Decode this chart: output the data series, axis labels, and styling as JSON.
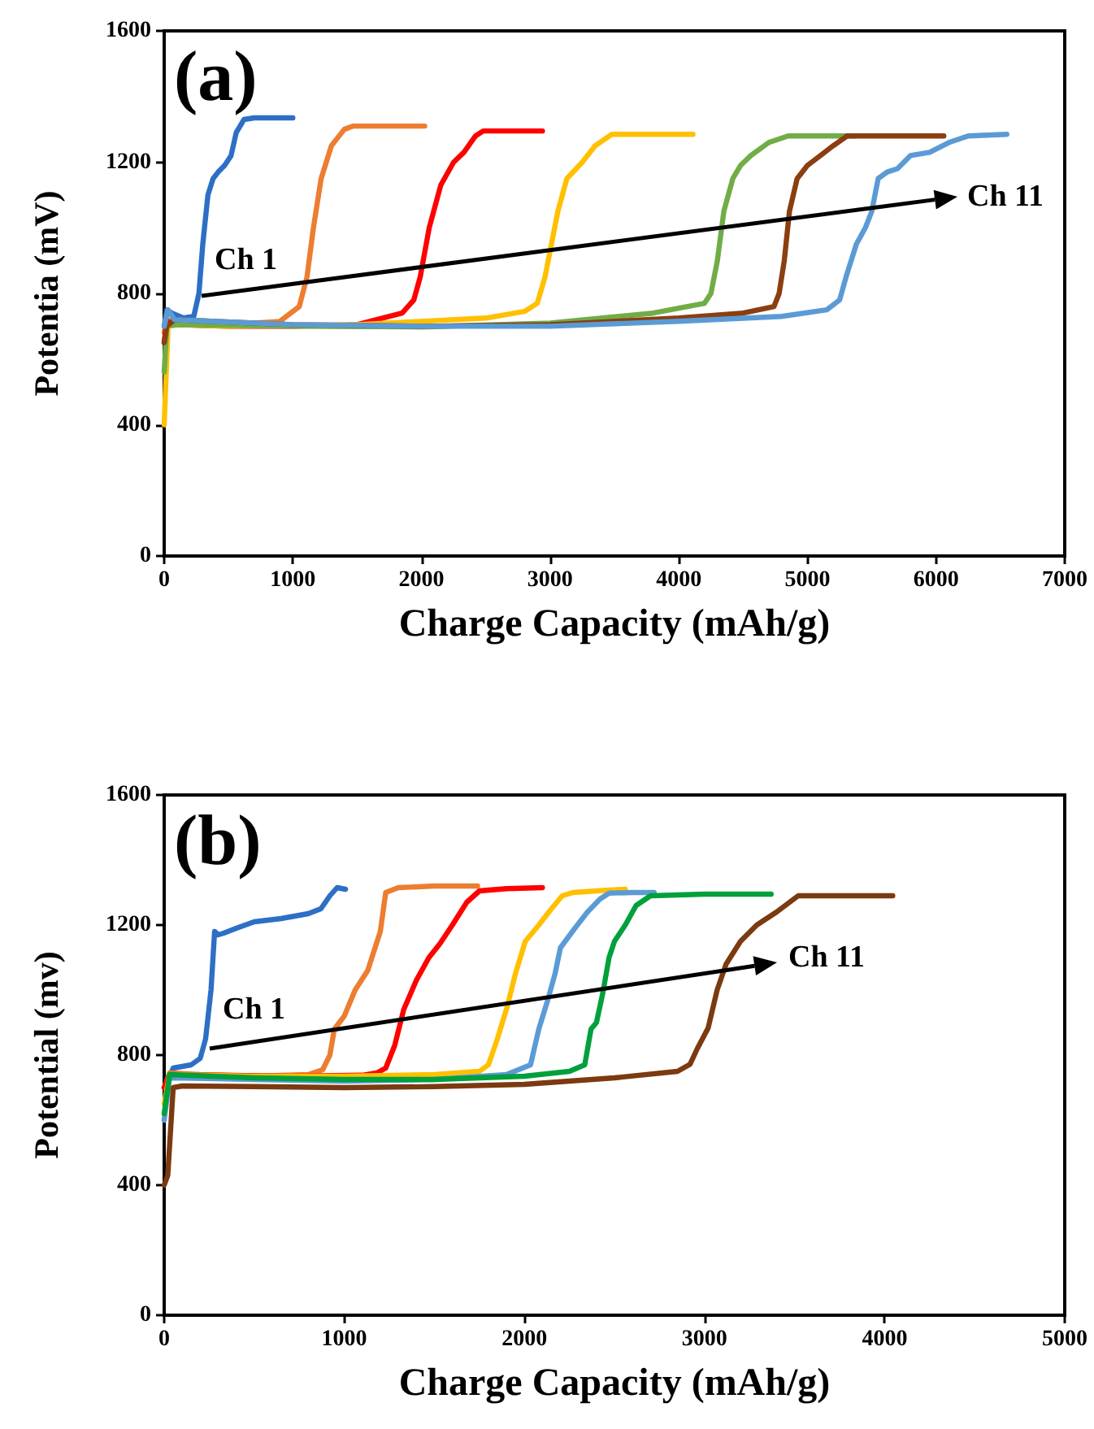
{
  "chart_data": [
    {
      "type": "line",
      "xlabel": "Charge Capacity (mAh/g)",
      "ylabel": "Potentia (mV)",
      "xlim": [
        0,
        7000
      ],
      "xticks": [
        0,
        1000,
        2000,
        3000,
        4000,
        5000,
        6000,
        7000
      ],
      "ylim": [
        0,
        1600
      ],
      "yticks": [
        0,
        400,
        800,
        1200,
        1600
      ],
      "grid": false,
      "marker": "none",
      "line_style": "solid",
      "annotations": [
        "(a)",
        "Ch 1",
        "Ch 11"
      ],
      "series": [
        {
          "color": "#2e6fc6",
          "x": [
            0,
            20,
            60,
            150,
            230,
            270,
            300,
            340,
            380,
            420,
            470,
            520,
            560,
            620,
            700,
            1000
          ],
          "values": [
            700,
            750,
            740,
            725,
            730,
            800,
            950,
            1100,
            1150,
            1170,
            1190,
            1220,
            1290,
            1330,
            1335,
            1335
          ]
        },
        {
          "color": "#ed7d31",
          "x": [
            0,
            20,
            100,
            500,
            900,
            1050,
            1110,
            1160,
            1220,
            1300,
            1400,
            1470,
            1600,
            2025
          ],
          "values": [
            680,
            720,
            715,
            705,
            715,
            760,
            850,
            1000,
            1150,
            1250,
            1300,
            1310,
            1310,
            1310
          ]
        },
        {
          "color": "#ff0000",
          "x": [
            0,
            20,
            100,
            500,
            1000,
            1500,
            1850,
            1940,
            1990,
            2060,
            2150,
            2250,
            2330,
            2420,
            2480,
            2600,
            2940
          ],
          "values": [
            650,
            715,
            705,
            700,
            700,
            705,
            740,
            780,
            850,
            1000,
            1130,
            1200,
            1230,
            1280,
            1295,
            1295,
            1295
          ]
        },
        {
          "color": "#ffc000",
          "x": [
            0,
            10,
            30,
            100,
            500,
            1500,
            2500,
            2800,
            2900,
            2960,
            3010,
            3060,
            3130,
            3250,
            3350,
            3480,
            3700,
            4110
          ],
          "values": [
            400,
            500,
            700,
            705,
            700,
            705,
            725,
            745,
            770,
            850,
            950,
            1050,
            1150,
            1200,
            1250,
            1285,
            1285,
            1285
          ]
        },
        {
          "color": "#70ad47",
          "x": [
            0,
            20,
            100,
            1000,
            2000,
            3000,
            3800,
            4200,
            4250,
            4300,
            4350,
            4420,
            4480,
            4560,
            4700,
            4850,
            5000,
            5370
          ],
          "values": [
            560,
            700,
            705,
            700,
            698,
            710,
            740,
            770,
            800,
            900,
            1050,
            1150,
            1190,
            1220,
            1260,
            1280,
            1280,
            1280
          ]
        },
        {
          "color": "#8b3e10",
          "x": [
            0,
            20,
            80,
            1000,
            2000,
            3000,
            4000,
            4500,
            4740,
            4780,
            4820,
            4860,
            4920,
            5000,
            5100,
            5200,
            5310,
            5600,
            6060
          ],
          "values": [
            650,
            700,
            720,
            705,
            700,
            705,
            725,
            740,
            760,
            800,
            900,
            1050,
            1150,
            1190,
            1220,
            1250,
            1280,
            1280,
            1280
          ]
        },
        {
          "color": "#5b9bd5",
          "x": [
            0,
            30,
            80,
            1000,
            2000,
            3000,
            4000,
            4800,
            5150,
            5250,
            5300,
            5380,
            5450,
            5500,
            5550,
            5620,
            5700,
            5800,
            5950,
            6100,
            6250,
            6550
          ],
          "values": [
            700,
            750,
            720,
            705,
            700,
            700,
            715,
            730,
            750,
            780,
            850,
            950,
            1000,
            1050,
            1150,
            1170,
            1180,
            1220,
            1230,
            1260,
            1280,
            1285
          ]
        }
      ]
    },
    {
      "type": "line",
      "xlabel": "Charge Capacity (mAh/g)",
      "ylabel": "Potential (mv)",
      "xlim": [
        0,
        5000
      ],
      "xticks": [
        0,
        1000,
        2000,
        3000,
        4000,
        5000
      ],
      "ylim": [
        0,
        1600
      ],
      "yticks": [
        0,
        400,
        800,
        1200,
        1600
      ],
      "grid": false,
      "marker": "none",
      "line_style": "solid",
      "annotations": [
        "(b)",
        "Ch 1",
        "Ch 11"
      ],
      "series": [
        {
          "color": "#2e6fc6",
          "x": [
            0,
            50,
            150,
            200,
            230,
            260,
            280,
            300,
            330,
            400,
            500,
            650,
            800,
            870,
            920,
            960,
            1007
          ],
          "values": [
            700,
            760,
            770,
            790,
            850,
            1000,
            1180,
            1170,
            1175,
            1190,
            1210,
            1220,
            1235,
            1250,
            1290,
            1315,
            1310
          ]
        },
        {
          "color": "#ed7d31",
          "x": [
            0,
            30,
            200,
            500,
            800,
            880,
            920,
            945,
            1000,
            1060,
            1130,
            1200,
            1230,
            1300,
            1500,
            1740
          ],
          "values": [
            700,
            745,
            740,
            735,
            740,
            755,
            800,
            880,
            920,
            1000,
            1060,
            1180,
            1300,
            1315,
            1320,
            1320
          ]
        },
        {
          "color": "#ff0000",
          "x": [
            0,
            30,
            300,
            700,
            1100,
            1180,
            1230,
            1280,
            1330,
            1400,
            1470,
            1530,
            1600,
            1680,
            1750,
            1900,
            2100
          ],
          "values": [
            700,
            740,
            738,
            735,
            738,
            745,
            760,
            830,
            940,
            1030,
            1100,
            1142,
            1200,
            1270,
            1305,
            1312,
            1315
          ]
        },
        {
          "color": "#ffc000",
          "x": [
            0,
            30,
            500,
            1000,
            1500,
            1750,
            1800,
            1850,
            1905,
            1950,
            2005,
            2080,
            2150,
            2210,
            2270,
            2400,
            2560
          ],
          "values": [
            650,
            740,
            735,
            735,
            740,
            750,
            770,
            850,
            950,
            1050,
            1150,
            1200,
            1250,
            1290,
            1300,
            1305,
            1310
          ]
        },
        {
          "color": "#5b9bd5",
          "x": [
            0,
            30,
            500,
            1000,
            1500,
            1900,
            2034,
            2080,
            2130,
            2170,
            2200,
            2280,
            2350,
            2420,
            2470,
            2600,
            2720
          ],
          "values": [
            600,
            730,
            725,
            720,
            725,
            740,
            770,
            880,
            970,
            1050,
            1130,
            1190,
            1240,
            1280,
            1298,
            1300,
            1300
          ]
        },
        {
          "color": "#00a03c",
          "x": [
            0,
            30,
            500,
            1000,
            1500,
            2000,
            2250,
            2335,
            2370,
            2400,
            2435,
            2470,
            2500,
            2560,
            2620,
            2700,
            3000,
            3370
          ],
          "values": [
            620,
            740,
            730,
            725,
            725,
            735,
            750,
            770,
            880,
            900,
            990,
            1100,
            1150,
            1200,
            1260,
            1290,
            1295,
            1295
          ]
        },
        {
          "color": "#7b3a10",
          "x": [
            0,
            20,
            50,
            100,
            500,
            1000,
            1500,
            2000,
            2500,
            2850,
            2920,
            2960,
            3020,
            3070,
            3120,
            3200,
            3290,
            3400,
            3520,
            3800,
            4045
          ],
          "values": [
            400,
            430,
            700,
            705,
            703,
            700,
            703,
            710,
            730,
            750,
            772,
            820,
            883,
            1000,
            1080,
            1150,
            1200,
            1240,
            1290,
            1290,
            1290
          ]
        }
      ]
    }
  ]
}
